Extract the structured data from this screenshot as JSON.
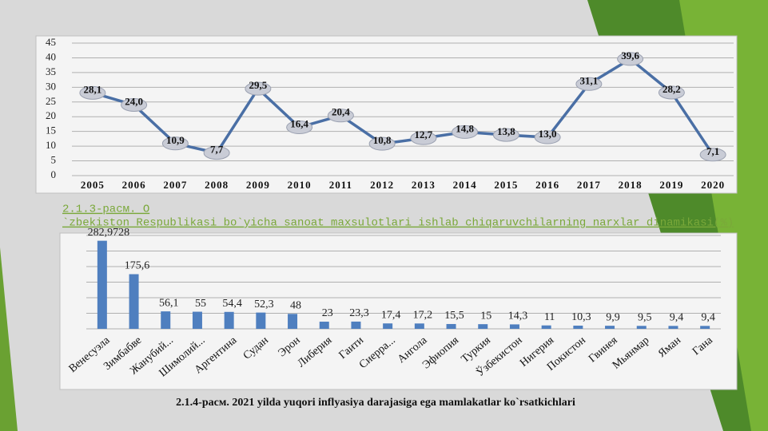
{
  "chart_data": [
    {
      "type": "line",
      "categories": [
        "2005",
        "2006",
        "2007",
        "2008",
        "2009",
        "2010",
        "2011",
        "2012",
        "2013",
        "2014",
        "2015",
        "2016",
        "2017",
        "2018",
        "2019",
        "2020"
      ],
      "values": [
        28.1,
        24.0,
        10.9,
        7.7,
        29.5,
        16.4,
        20.4,
        10.8,
        12.7,
        14.8,
        13.8,
        13.0,
        31.1,
        39.6,
        28.2,
        7.1
      ],
      "value_labels": [
        "28,1",
        "24,0",
        "10,9",
        "7,7",
        "29,5",
        "16,4",
        "20,4",
        "10,8",
        "12,7",
        "14,8",
        "13,8",
        "13,0",
        "31,1",
        "39,6",
        "28,2",
        "7,1"
      ],
      "color": "#4a6fa5",
      "ylim": [
        0,
        45
      ],
      "yticks": [
        0,
        5,
        10,
        15,
        20,
        25,
        30,
        35,
        40,
        45
      ],
      "grid": true,
      "tick_labels": true,
      "caption_lines": [
        "2.1.3-расм. O",
        "`zbekiston Respublikasi bo`yicha sanoat maxsulotlari ishlab chiqaruvchilarning narxlar dinamikasi(%)"
      ]
    },
    {
      "type": "bar",
      "categories": [
        "Венесуэла",
        "Зимбабве",
        "Жанубий...",
        "Шимолий...",
        "Аргентина",
        "Судан",
        "Эрон",
        "Либерия",
        "Гаити",
        "Сиерра...",
        "Ангола",
        "Эфиопия",
        "Туркия",
        "Ўзбекистон",
        "Нигерия",
        "Покистон",
        "Гвинея",
        "Мьянмар",
        "Яман",
        "Гана"
      ],
      "values": [
        282.9728,
        175.6,
        56.1,
        55,
        54.4,
        52.3,
        48,
        23,
        23.3,
        17.4,
        17.2,
        15.5,
        15,
        14.3,
        11,
        10.3,
        9.9,
        9.5,
        9.4,
        9.4
      ],
      "value_labels": [
        "282,9728",
        "175,6",
        "56,1",
        "55",
        "54,4",
        "52,3",
        "48",
        "23",
        "23,3",
        "17,4",
        "17,2",
        "15,5",
        "15",
        "14,3",
        "11",
        "10,3",
        "9,9",
        "9,5",
        "9,4",
        "9,4"
      ],
      "color": "#4f7fbf",
      "ylim": [
        0,
        300
      ],
      "yticks": [
        0,
        50,
        100,
        150,
        200,
        250,
        300
      ],
      "grid": true,
      "tick_labels": false,
      "title": "2.1.4-расм. 2021 yilda yuqori inflyasiya darajasiga ega mamlakatlar ko`rsatkichlari"
    }
  ]
}
